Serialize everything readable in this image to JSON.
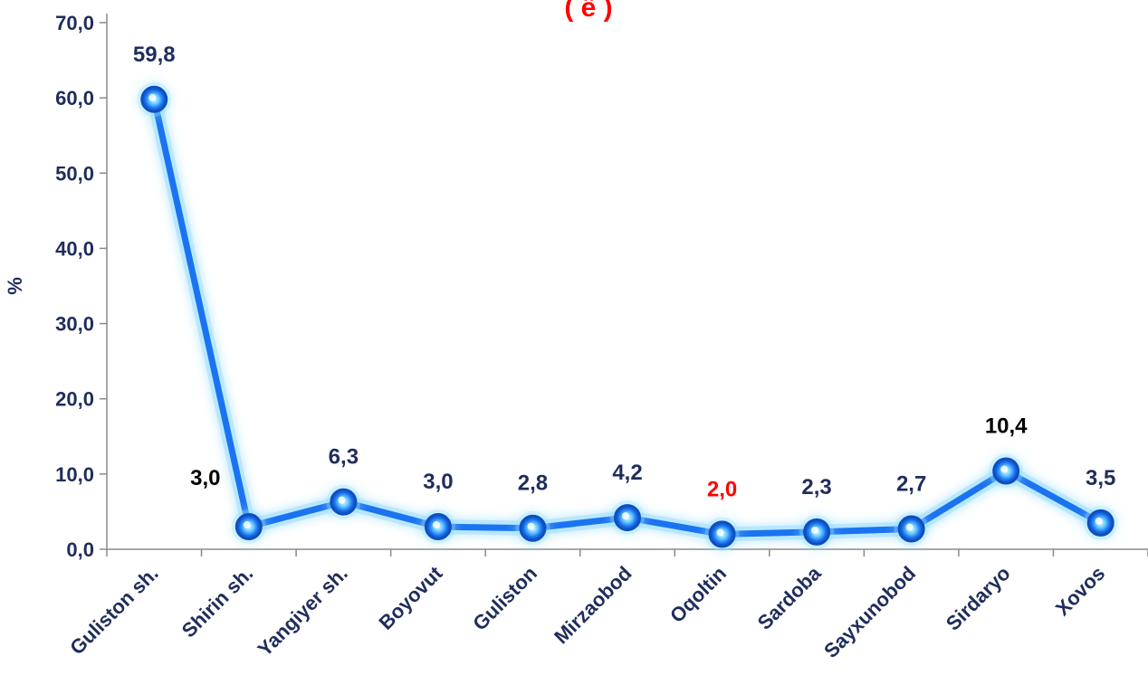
{
  "chart_data": {
    "type": "line",
    "title": "(              ё                         )",
    "title_visible_fragment": true,
    "ylabel": "%",
    "ylim": [
      0,
      70
    ],
    "yticks": [
      "0,0",
      "10,0",
      "20,0",
      "30,0",
      "40,0",
      "50,0",
      "60,0",
      "70,0"
    ],
    "categories": [
      "Guliston sh.",
      "Shirin sh.",
      "Yangiyer sh.",
      "Boyovut",
      "Guliston",
      "Mirzaobod",
      "Oqoltin",
      "Sardoba",
      "Sayxunobod",
      "Sirdaryo",
      "Xovos"
    ],
    "values": [
      59.8,
      3.0,
      6.3,
      3.0,
      2.8,
      4.2,
      2.0,
      2.3,
      2.7,
      10.4,
      3.5
    ],
    "data_labels": [
      "59,8",
      "3,0",
      "6,3",
      "3,0",
      "2,8",
      "4,2",
      "2,0",
      "2,3",
      "2,7",
      "10,4",
      "3,5"
    ],
    "label_colors": [
      "#1f2d5c",
      "#000000",
      "#1f2d5c",
      "#1f2d5c",
      "#1f2d5c",
      "#1f2d5c",
      "#ff0000",
      "#1f2d5c",
      "#1f2d5c",
      "#000000",
      "#1f2d5c"
    ],
    "line_color": "#1a73f0",
    "grid": false
  }
}
